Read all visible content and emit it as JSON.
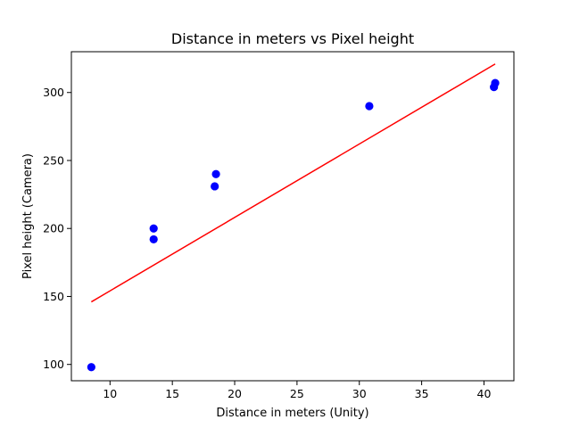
{
  "chart_data": {
    "type": "scatter",
    "title": "Distance in meters vs Pixel height",
    "xlabel": "Distance in meters (Unity)",
    "ylabel": "Pixel height (Camera)",
    "xlim": [
      6.9,
      42.4
    ],
    "ylim": [
      88,
      330
    ],
    "xticks": [
      10,
      15,
      20,
      25,
      30,
      35,
      40
    ],
    "yticks": [
      100,
      150,
      200,
      250,
      300
    ],
    "grid": false,
    "legend": "none",
    "series": [
      {
        "kind": "scatter",
        "color": "#0000ff",
        "points": [
          {
            "x": 8.5,
            "y": 98
          },
          {
            "x": 13.5,
            "y": 200
          },
          {
            "x": 13.5,
            "y": 192
          },
          {
            "x": 18.4,
            "y": 231
          },
          {
            "x": 18.5,
            "y": 240
          },
          {
            "x": 30.8,
            "y": 290
          },
          {
            "x": 40.8,
            "y": 304
          },
          {
            "x": 40.9,
            "y": 307
          }
        ]
      },
      {
        "kind": "line",
        "color": "#ff0000",
        "points": [
          {
            "x": 8.5,
            "y": 146
          },
          {
            "x": 40.9,
            "y": 321
          }
        ]
      }
    ]
  }
}
